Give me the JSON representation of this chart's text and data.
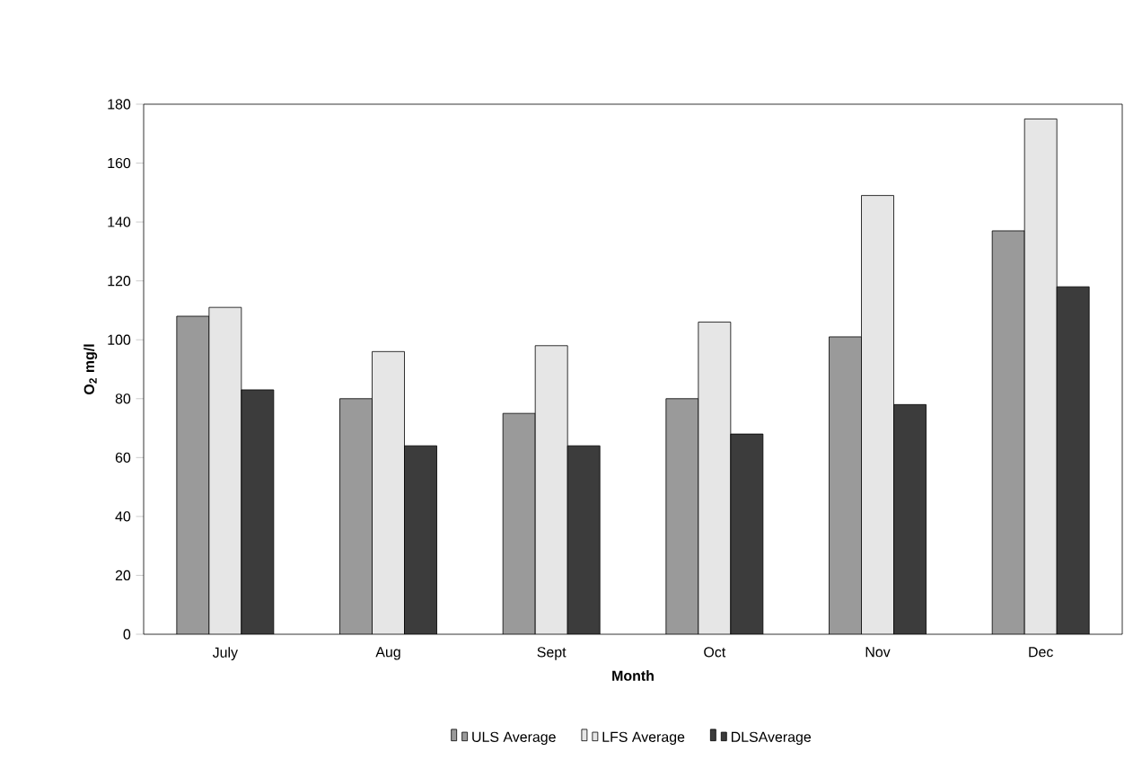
{
  "chart_data": {
    "type": "bar",
    "xlabel": "Month",
    "ylabel": "O$_{2}$ mg/l",
    "categories": [
      "July",
      "Aug",
      "Sept",
      "Oct",
      "Nov",
      "Dec"
    ],
    "series": [
      {
        "name": "ULS Average",
        "color": "#9a9a9a",
        "values": [
          108,
          80,
          75,
          80,
          101,
          137
        ]
      },
      {
        "name": "LFS Average",
        "color": "#e6e6e6",
        "values": [
          111,
          96,
          98,
          106,
          149,
          175
        ]
      },
      {
        "name": "DLSAverage",
        "color": "#3c3c3c",
        "values": [
          83,
          64,
          64,
          68,
          78,
          118
        ]
      }
    ],
    "ylim": [
      0,
      180
    ],
    "yticks": [
      0,
      20,
      40,
      60,
      80,
      100,
      120,
      140,
      160,
      180
    ],
    "grid": false,
    "legend": "bottom"
  }
}
